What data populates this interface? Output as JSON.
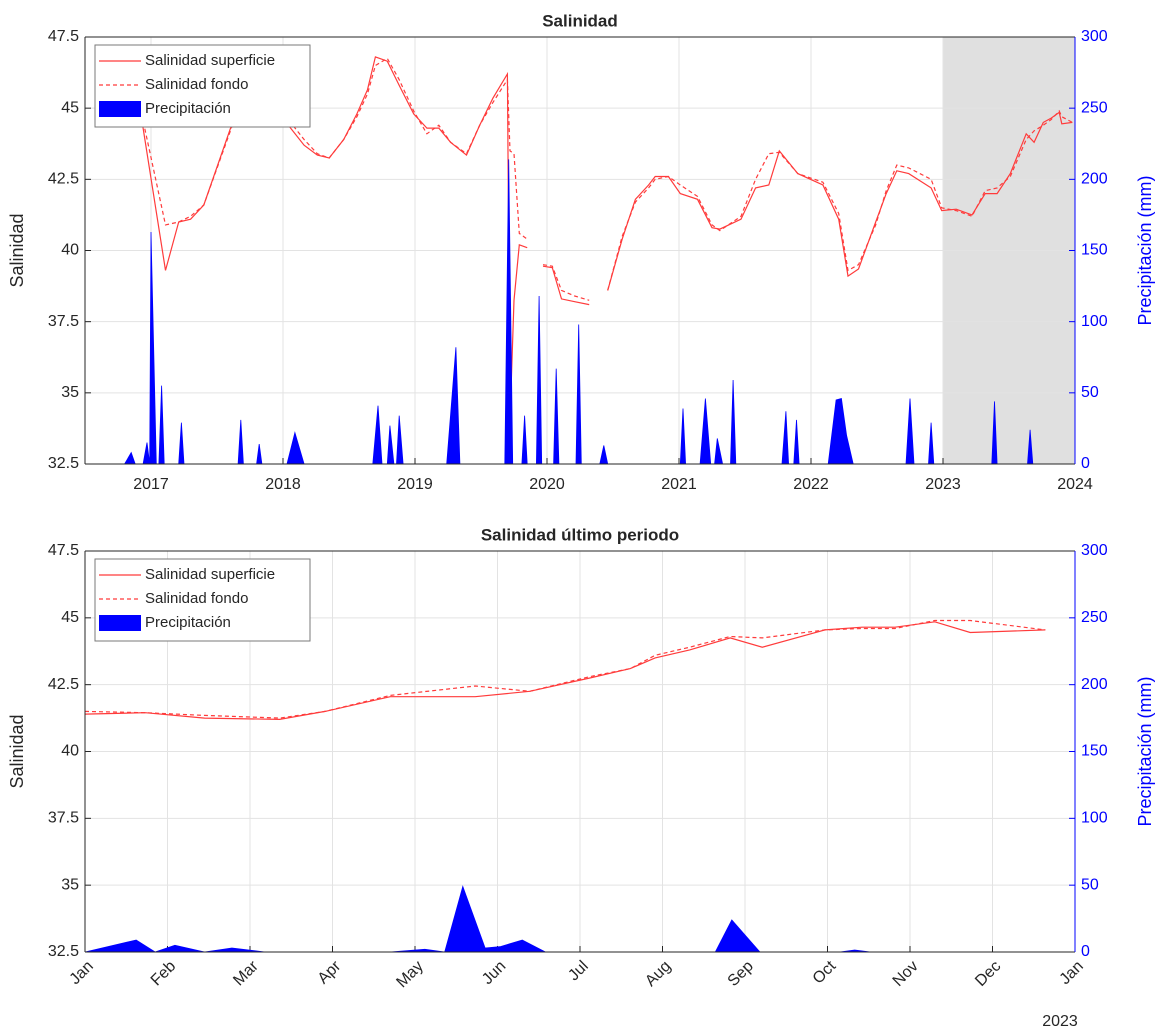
{
  "chart_data": [
    {
      "type": "line",
      "title": "Salinidad",
      "ylabel": "Salinidad",
      "y2label": "Precipitación (mm)",
      "xlim": [
        2016.5,
        2024
      ],
      "xticks": [
        2017,
        2018,
        2019,
        2020,
        2021,
        2022,
        2023,
        2024
      ],
      "ylim": [
        32.5,
        47.5
      ],
      "yticks": [
        32.5,
        35,
        37.5,
        40,
        42.5,
        45,
        47.5
      ],
      "y2lim": [
        0,
        300
      ],
      "y2ticks": [
        0,
        50,
        100,
        150,
        200,
        250,
        300
      ],
      "grid": true,
      "legend": "upper left",
      "y2_color": "#0000ff",
      "shade_xlim": [
        2023,
        2024
      ],
      "shade_color": "#e0e0e0",
      "series": [
        {
          "name": "Salinidad superficie",
          "color": "#ff3b3b",
          "style": "solid",
          "x": [
            2016.92,
            2017.11,
            2017.21,
            2017.3,
            2017.4,
            2017.64,
            2017.97,
            2018.04,
            2018.16,
            2018.26,
            2018.35,
            2018.46,
            2018.56,
            2018.64,
            2018.7,
            2018.79,
            2018.88,
            2018.99,
            2019.09,
            2019.18,
            2019.27,
            2019.39,
            2019.49,
            2019.59,
            2019.7,
            2019.72,
            2019.75,
            2019.79,
            2019.85,
            2019.91,
            2019.97,
            2020.04,
            2020.11,
            2020.21,
            2020.32,
            2020.39,
            2020.46,
            2020.57,
            2020.67,
            2020.77,
            2020.82,
            2020.92,
            2021.01,
            2021.14,
            2021.25,
            2021.31,
            2021.47,
            2021.58,
            2021.68,
            2021.76,
            2021.9,
            2022.09,
            2022.21,
            2022.28,
            2022.36,
            2022.49,
            2022.57,
            2022.65,
            2022.74,
            2022.91,
            2022.99,
            2023.1,
            2023.22,
            2023.32,
            2023.41,
            2023.51,
            2023.63,
            2023.69,
            2023.76,
            2023.82,
            2023.88,
            2023.9,
            2023.98
          ],
          "values": [
            44.9,
            39.3,
            41.0,
            41.1,
            41.6,
            44.8,
            44.7,
            44.4,
            43.7,
            43.35,
            43.25,
            43.9,
            44.8,
            45.65,
            46.8,
            46.65,
            45.8,
            44.8,
            44.3,
            44.3,
            43.8,
            43.35,
            44.4,
            45.35,
            46.2,
            34.05,
            38.25,
            40.2,
            40.1,
            null,
            39.45,
            39.4,
            38.3,
            38.2,
            38.1,
            null,
            38.6,
            40.4,
            41.8,
            42.3,
            42.6,
            42.6,
            42.0,
            41.8,
            40.8,
            40.75,
            41.1,
            42.2,
            42.3,
            43.5,
            42.7,
            42.3,
            41.1,
            39.1,
            39.35,
            41.0,
            42.0,
            42.8,
            42.7,
            42.2,
            41.4,
            41.45,
            41.25,
            42.0,
            42.0,
            42.7,
            44.1,
            43.8,
            44.5,
            44.65,
            44.85,
            44.45,
            44.5
          ]
        },
        {
          "name": "Salinidad fondo",
          "color": "#ff3b3b",
          "style": "dashed",
          "x": [
            2016.92,
            2017.11,
            2017.21,
            2017.3,
            2017.4,
            2017.64,
            2017.97,
            2018.04,
            2018.16,
            2018.26,
            2018.35,
            2018.46,
            2018.56,
            2018.64,
            2018.7,
            2018.79,
            2018.88,
            2018.99,
            2019.09,
            2019.18,
            2019.27,
            2019.39,
            2019.49,
            2019.59,
            2019.7,
            2019.72,
            2019.75,
            2019.79,
            2019.85,
            2019.91,
            2019.97,
            2020.04,
            2020.11,
            2020.21,
            2020.32,
            2020.39,
            2020.46,
            2020.57,
            2020.67,
            2020.77,
            2020.82,
            2020.92,
            2021.01,
            2021.14,
            2021.25,
            2021.31,
            2021.47,
            2021.58,
            2021.68,
            2021.76,
            2021.9,
            2022.09,
            2022.21,
            2022.28,
            2022.36,
            2022.49,
            2022.57,
            2022.65,
            2022.74,
            2022.91,
            2022.99,
            2023.1,
            2023.22,
            2023.32,
            2023.41,
            2023.51,
            2023.63,
            2023.69,
            2023.76,
            2023.82,
            2023.88,
            2023.9,
            2023.98
          ],
          "values": [
            45.0,
            40.9,
            41.0,
            41.2,
            41.6,
            44.7,
            44.9,
            44.6,
            43.9,
            43.4,
            43.25,
            43.9,
            44.7,
            45.5,
            46.5,
            46.75,
            46.0,
            44.9,
            44.1,
            44.4,
            43.8,
            43.4,
            44.4,
            45.2,
            46.0,
            43.5,
            43.4,
            40.6,
            40.4,
            null,
            39.5,
            39.45,
            38.6,
            38.4,
            38.25,
            null,
            38.6,
            40.5,
            41.7,
            42.2,
            42.5,
            42.6,
            42.3,
            41.9,
            40.9,
            40.7,
            41.2,
            42.5,
            43.4,
            43.45,
            42.7,
            42.4,
            41.3,
            39.3,
            39.5,
            40.9,
            42.1,
            43.0,
            42.9,
            42.5,
            41.5,
            41.4,
            41.2,
            42.1,
            42.2,
            42.6,
            43.9,
            44.2,
            44.4,
            44.6,
            44.9,
            44.7,
            44.5
          ]
        },
        {
          "name": "Precipitación",
          "color": "#0000ff",
          "style": "area",
          "axis": "y2",
          "x": [
            2016.8,
            2016.85,
            2016.88,
            2016.94,
            2016.97,
            2016.99,
            2017.0,
            2017.04,
            2017.06,
            2017.08,
            2017.1,
            2017.21,
            2017.23,
            2017.25,
            2017.66,
            2017.68,
            2017.7,
            2017.8,
            2017.82,
            2017.84,
            2018.03,
            2018.09,
            2018.16,
            2018.68,
            2018.72,
            2018.75,
            2018.79,
            2018.81,
            2018.84,
            2018.86,
            2018.88,
            2018.91,
            2019.24,
            2019.31,
            2019.34,
            2019.68,
            2019.71,
            2019.74,
            2019.81,
            2019.83,
            2019.85,
            2019.92,
            2019.94,
            2019.96,
            2020.05,
            2020.07,
            2020.09,
            2020.22,
            2020.24,
            2020.26,
            2020.4,
            2020.43,
            2020.46,
            2021.01,
            2021.03,
            2021.05,
            2021.16,
            2021.2,
            2021.24,
            2021.27,
            2021.29,
            2021.33,
            2021.39,
            2021.41,
            2021.43,
            2021.78,
            2021.81,
            2021.83,
            2021.87,
            2021.89,
            2021.91,
            2022.13,
            2022.19,
            2022.23,
            2022.27,
            2022.32,
            2022.72,
            2022.75,
            2022.78,
            2022.89,
            2022.91,
            2022.93,
            2023.37,
            2023.39,
            2023.41,
            2023.64,
            2023.66,
            2023.68,
            2023.98
          ],
          "values": [
            0,
            8,
            0,
            0,
            15,
            0,
            163,
            0,
            0,
            55,
            0,
            0,
            29,
            0,
            0,
            31,
            0,
            0,
            14,
            0,
            0,
            22,
            0,
            0,
            41,
            0,
            0,
            27,
            0,
            0,
            34,
            0,
            0,
            82,
            0,
            0,
            214,
            0,
            0,
            34,
            0,
            0,
            118,
            0,
            0,
            67,
            0,
            0,
            98,
            0,
            0,
            13,
            0,
            0,
            39,
            0,
            0,
            46,
            0,
            0,
            18,
            0,
            0,
            59,
            0,
            0,
            37,
            0,
            0,
            31,
            0,
            0,
            45,
            46,
            20,
            0,
            0,
            46,
            0,
            0,
            29,
            0,
            0,
            44,
            0,
            0,
            24,
            0,
            0
          ]
        }
      ]
    },
    {
      "type": "line",
      "title": "Salinidad último periodo",
      "ylabel": "Salinidad",
      "y2label": "Precipitación (mm)",
      "x_secondary_label": "2023",
      "xtick_rotation": 45,
      "xlim": [
        0,
        12
      ],
      "xticks": [
        {
          "value": 0,
          "label": "Jan"
        },
        {
          "value": 1,
          "label": "Feb"
        },
        {
          "value": 2,
          "label": "Mar"
        },
        {
          "value": 3,
          "label": "Apr"
        },
        {
          "value": 4,
          "label": "May"
        },
        {
          "value": 5,
          "label": "Jun"
        },
        {
          "value": 6,
          "label": "Jul"
        },
        {
          "value": 7,
          "label": "Aug"
        },
        {
          "value": 8,
          "label": "Sep"
        },
        {
          "value": 9,
          "label": "Oct"
        },
        {
          "value": 10,
          "label": "Nov"
        },
        {
          "value": 11,
          "label": "Dec"
        },
        {
          "value": 12,
          "label": "Jan"
        }
      ],
      "ylim": [
        32.5,
        47.5
      ],
      "yticks": [
        32.5,
        35,
        37.5,
        40,
        42.5,
        45,
        47.5
      ],
      "y2lim": [
        0,
        300
      ],
      "y2ticks": [
        0,
        50,
        100,
        150,
        200,
        250,
        300
      ],
      "grid": true,
      "legend": "upper left",
      "y2_color": "#0000ff",
      "series": [
        {
          "name": "Salinidad superficie",
          "color": "#ff3b3b",
          "style": "solid",
          "x": [
            0,
            0.73,
            1.45,
            2.36,
            2.91,
            3.7,
            4.73,
            5.39,
            6.12,
            6.61,
            6.91,
            7.33,
            7.82,
            8.21,
            8.97,
            9.42,
            9.82,
            10.3,
            10.73,
            11.64
          ],
          "values": [
            41.4,
            41.45,
            41.25,
            41.2,
            41.5,
            42.05,
            42.05,
            42.25,
            42.75,
            43.1,
            43.5,
            43.8,
            44.25,
            43.9,
            44.55,
            44.65,
            44.65,
            44.85,
            44.45,
            44.55
          ]
        },
        {
          "name": "Salinidad fondo",
          "color": "#ff3b3b",
          "style": "dashed",
          "x": [
            0,
            0.73,
            1.45,
            2.36,
            2.91,
            3.7,
            4.73,
            5.39,
            6.12,
            6.61,
            6.91,
            7.33,
            7.82,
            8.21,
            8.97,
            9.42,
            9.82,
            10.3,
            10.73,
            11.64
          ],
          "values": [
            41.5,
            41.45,
            41.35,
            41.25,
            41.5,
            42.1,
            42.45,
            42.25,
            42.8,
            43.1,
            43.6,
            43.9,
            44.3,
            44.25,
            44.55,
            44.6,
            44.6,
            44.9,
            44.9,
            44.55
          ]
        },
        {
          "name": "Precipitación",
          "color": "#0000ff",
          "style": "area",
          "axis": "y2",
          "x": [
            0,
            0.62,
            0.85,
            1.09,
            1.45,
            1.78,
            2.18,
            3.7,
            4.12,
            4.36,
            4.58,
            4.85,
            5.03,
            5.3,
            5.58,
            7.64,
            7.84,
            8.18,
            9.15,
            9.33,
            9.52,
            11.64
          ],
          "values": [
            0,
            9,
            0,
            5,
            0,
            3,
            0,
            0,
            2,
            0,
            49,
            3,
            4,
            9,
            0,
            0,
            24,
            0,
            0,
            1.5,
            0,
            0
          ]
        }
      ]
    }
  ]
}
